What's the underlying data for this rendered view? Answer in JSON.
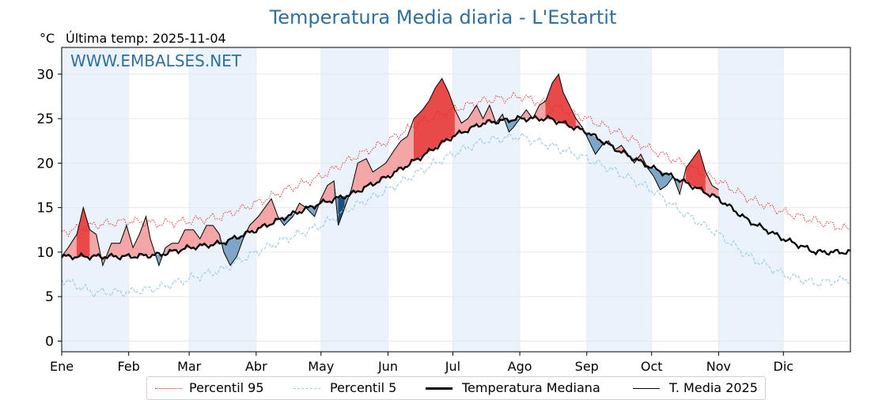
{
  "chart_data": {
    "type": "line",
    "title": "Temperatura Media diaria - L'Estartit",
    "unit_label": "°C",
    "last_temp_label": "Última temp: 2025-11-04",
    "watermark": "WWW.EMBALSES.NET",
    "ylim": [
      -1.2,
      33
    ],
    "y_ticks": [
      0,
      5,
      10,
      15,
      20,
      25,
      30
    ],
    "x_tick_labels": [
      "Ene",
      "Feb",
      "Mar",
      "Abr",
      "May",
      "Jun",
      "Jul",
      "Ago",
      "Sep",
      "Oct",
      "Nov",
      "Dic"
    ],
    "x_unit": "day of year (1-366)",
    "x_ticks": [
      1,
      32,
      60,
      91,
      121,
      152,
      182,
      213,
      244,
      274,
      305,
      335
    ],
    "xlim": [
      1,
      366
    ],
    "shaded_months": [
      0,
      2,
      4,
      6,
      8,
      10
    ],
    "grid": true,
    "legend_position": "bottom",
    "colors": {
      "title": "#2f6f9f",
      "p95": "#e8271f",
      "p5": "#9ecae1",
      "median": "#000000",
      "mean": "#000000",
      "above_fill": "#f4a5a5",
      "above_extreme": "#e84a4a",
      "below_fill": "#7ea6c9",
      "below_extreme": "#1f4e79",
      "month_band": "#eaf2fb"
    },
    "series": [
      {
        "name": "Percentil 95",
        "style": "dotted-red",
        "points": [
          [
            1,
            12.2
          ],
          [
            15,
            13.0
          ],
          [
            32,
            13.5
          ],
          [
            46,
            13.2
          ],
          [
            60,
            13.5
          ],
          [
            75,
            14.0
          ],
          [
            91,
            15.5
          ],
          [
            105,
            17.0
          ],
          [
            121,
            18.5
          ],
          [
            135,
            20.5
          ],
          [
            152,
            22.5
          ],
          [
            166,
            24.5
          ],
          [
            182,
            26.0
          ],
          [
            196,
            27.0
          ],
          [
            213,
            27.5
          ],
          [
            227,
            26.5
          ],
          [
            244,
            25.0
          ],
          [
            258,
            23.5
          ],
          [
            274,
            21.5
          ],
          [
            288,
            20.0
          ],
          [
            305,
            18.0
          ],
          [
            319,
            16.0
          ],
          [
            335,
            14.5
          ],
          [
            350,
            13.5
          ],
          [
            366,
            12.5
          ]
        ]
      },
      {
        "name": "Percentil 5",
        "style": "dashed-lightblue",
        "points": [
          [
            1,
            7.0
          ],
          [
            15,
            5.5
          ],
          [
            32,
            5.5
          ],
          [
            46,
            6.0
          ],
          [
            60,
            7.0
          ],
          [
            75,
            8.0
          ],
          [
            91,
            10.0
          ],
          [
            105,
            11.5
          ],
          [
            121,
            13.0
          ],
          [
            135,
            15.0
          ],
          [
            152,
            17.0
          ],
          [
            166,
            19.0
          ],
          [
            182,
            21.0
          ],
          [
            196,
            22.5
          ],
          [
            213,
            23.0
          ],
          [
            227,
            22.0
          ],
          [
            244,
            20.5
          ],
          [
            258,
            19.0
          ],
          [
            274,
            17.0
          ],
          [
            288,
            14.5
          ],
          [
            305,
            12.0
          ],
          [
            319,
            9.5
          ],
          [
            335,
            7.5
          ],
          [
            350,
            6.5
          ],
          [
            366,
            7.0
          ]
        ]
      },
      {
        "name": "Temperatura Mediana",
        "style": "thick-black",
        "points": [
          [
            1,
            9.5
          ],
          [
            15,
            9.5
          ],
          [
            32,
            9.5
          ],
          [
            46,
            9.7
          ],
          [
            60,
            10.5
          ],
          [
            75,
            11.0
          ],
          [
            91,
            12.5
          ],
          [
            105,
            14.0
          ],
          [
            121,
            15.5
          ],
          [
            135,
            16.5
          ],
          [
            152,
            18.5
          ],
          [
            166,
            20.5
          ],
          [
            182,
            23.0
          ],
          [
            196,
            24.5
          ],
          [
            213,
            25.0
          ],
          [
            227,
            25.0
          ],
          [
            244,
            23.5
          ],
          [
            258,
            21.5
          ],
          [
            274,
            19.5
          ],
          [
            288,
            18.0
          ],
          [
            305,
            16.0
          ],
          [
            319,
            13.5
          ],
          [
            335,
            11.5
          ],
          [
            350,
            10.0
          ],
          [
            366,
            10.0
          ]
        ]
      },
      {
        "name": "T. Media 2025",
        "style": "thin-black",
        "points": [
          [
            1,
            9.5
          ],
          [
            4,
            10.5
          ],
          [
            8,
            12.0
          ],
          [
            11,
            15.0
          ],
          [
            14,
            12.5
          ],
          [
            17,
            12.0
          ],
          [
            20,
            8.5
          ],
          [
            24,
            11.0
          ],
          [
            28,
            11.0
          ],
          [
            31,
            13.0
          ],
          [
            34,
            10.5
          ],
          [
            37,
            12.0
          ],
          [
            40,
            14.0
          ],
          [
            42,
            11.5
          ],
          [
            44,
            10.0
          ],
          [
            46,
            8.5
          ],
          [
            49,
            10.5
          ],
          [
            52,
            11.0
          ],
          [
            55,
            11.0
          ],
          [
            58,
            12.5
          ],
          [
            62,
            12.5
          ],
          [
            65,
            11.5
          ],
          [
            68,
            13.0
          ],
          [
            71,
            13.0
          ],
          [
            74,
            12.0
          ],
          [
            76,
            10.0
          ],
          [
            79,
            8.5
          ],
          [
            82,
            9.5
          ],
          [
            85,
            11.5
          ],
          [
            88,
            13.0
          ],
          [
            92,
            14.0
          ],
          [
            95,
            15.0
          ],
          [
            98,
            16.0
          ],
          [
            101,
            14.0
          ],
          [
            104,
            13.0
          ],
          [
            108,
            14.0
          ],
          [
            111,
            15.5
          ],
          [
            114,
            15.0
          ],
          [
            118,
            14.0
          ],
          [
            121,
            16.0
          ],
          [
            124,
            17.5
          ],
          [
            127,
            18.0
          ],
          [
            129,
            13.0
          ],
          [
            132,
            15.0
          ],
          [
            135,
            17.0
          ],
          [
            138,
            20.0
          ],
          [
            142,
            20.5
          ],
          [
            145,
            19.0
          ],
          [
            148,
            19.5
          ],
          [
            151,
            20.0
          ],
          [
            155,
            21.5
          ],
          [
            158,
            22.5
          ],
          [
            161,
            23.0
          ],
          [
            164,
            25.0
          ],
          [
            168,
            26.0
          ],
          [
            171,
            27.0
          ],
          [
            174,
            28.5
          ],
          [
            177,
            29.5
          ],
          [
            180,
            28.0
          ],
          [
            183,
            26.0
          ],
          [
            186,
            24.5
          ],
          [
            189,
            25.0
          ],
          [
            193,
            26.5
          ],
          [
            196,
            25.0
          ],
          [
            199,
            26.5
          ],
          [
            202,
            24.5
          ],
          [
            205,
            25.5
          ],
          [
            208,
            23.5
          ],
          [
            210,
            24.0
          ],
          [
            213,
            25.0
          ],
          [
            216,
            26.0
          ],
          [
            219,
            25.0
          ],
          [
            222,
            26.5
          ],
          [
            225,
            27.0
          ],
          [
            228,
            29.0
          ],
          [
            231,
            30.0
          ],
          [
            233,
            28.0
          ],
          [
            236,
            26.5
          ],
          [
            239,
            25.0
          ],
          [
            242,
            24.0
          ],
          [
            245,
            22.5
          ],
          [
            248,
            21.0
          ],
          [
            251,
            22.0
          ],
          [
            254,
            22.5
          ],
          [
            257,
            21.5
          ],
          [
            260,
            22.0
          ],
          [
            263,
            21.0
          ],
          [
            266,
            20.0
          ],
          [
            269,
            21.0
          ],
          [
            272,
            19.5
          ],
          [
            275,
            18.5
          ],
          [
            278,
            17.0
          ],
          [
            281,
            17.5
          ],
          [
            284,
            18.5
          ],
          [
            287,
            16.5
          ],
          [
            290,
            19.5
          ],
          [
            293,
            20.5
          ],
          [
            296,
            21.5
          ],
          [
            299,
            19.0
          ],
          [
            302,
            17.5
          ],
          [
            305,
            17.0
          ]
        ]
      }
    ]
  },
  "legend": {
    "p95": "Percentil 95",
    "p5": "Percentil 5",
    "median": "Temperatura Mediana",
    "mean": "T. Media 2025"
  }
}
